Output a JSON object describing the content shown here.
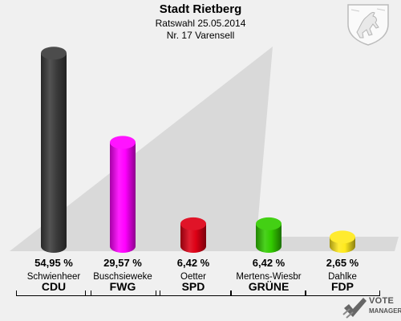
{
  "header": {
    "title": "Stadt Rietberg",
    "subtitle": "Ratswahl 25.05.2014",
    "subtitle2": "Nr. 17 Varensell"
  },
  "chart_data": {
    "type": "bar",
    "title": "Stadt Rietberg",
    "subtitle": "Ratswahl 25.05.2014 · Nr. 17 Varensell",
    "categories": [
      "CDU",
      "FWG",
      "SPD",
      "GRÜNE",
      "FDP"
    ],
    "candidates": [
      "Schwienheer",
      "Buschsieweke",
      "Oetter",
      "Mertens-Wiesbr",
      "Dahlke"
    ],
    "values": [
      54.95,
      29.57,
      6.42,
      6.42,
      2.65
    ],
    "value_labels": [
      "54,95 %",
      "29,57 %",
      "6,42 %",
      "6,42 %",
      "2,65 %"
    ],
    "colors": [
      "#3c3c3c",
      "#ff00ff",
      "#dd0015",
      "#33cc00",
      "#ffe91d"
    ],
    "unit": "%",
    "ylim": [
      0,
      55
    ],
    "grid": false,
    "legend": "none"
  },
  "branding": {
    "line1": "VOTE",
    "line2": "MANAGER",
    "color": "#555555"
  }
}
